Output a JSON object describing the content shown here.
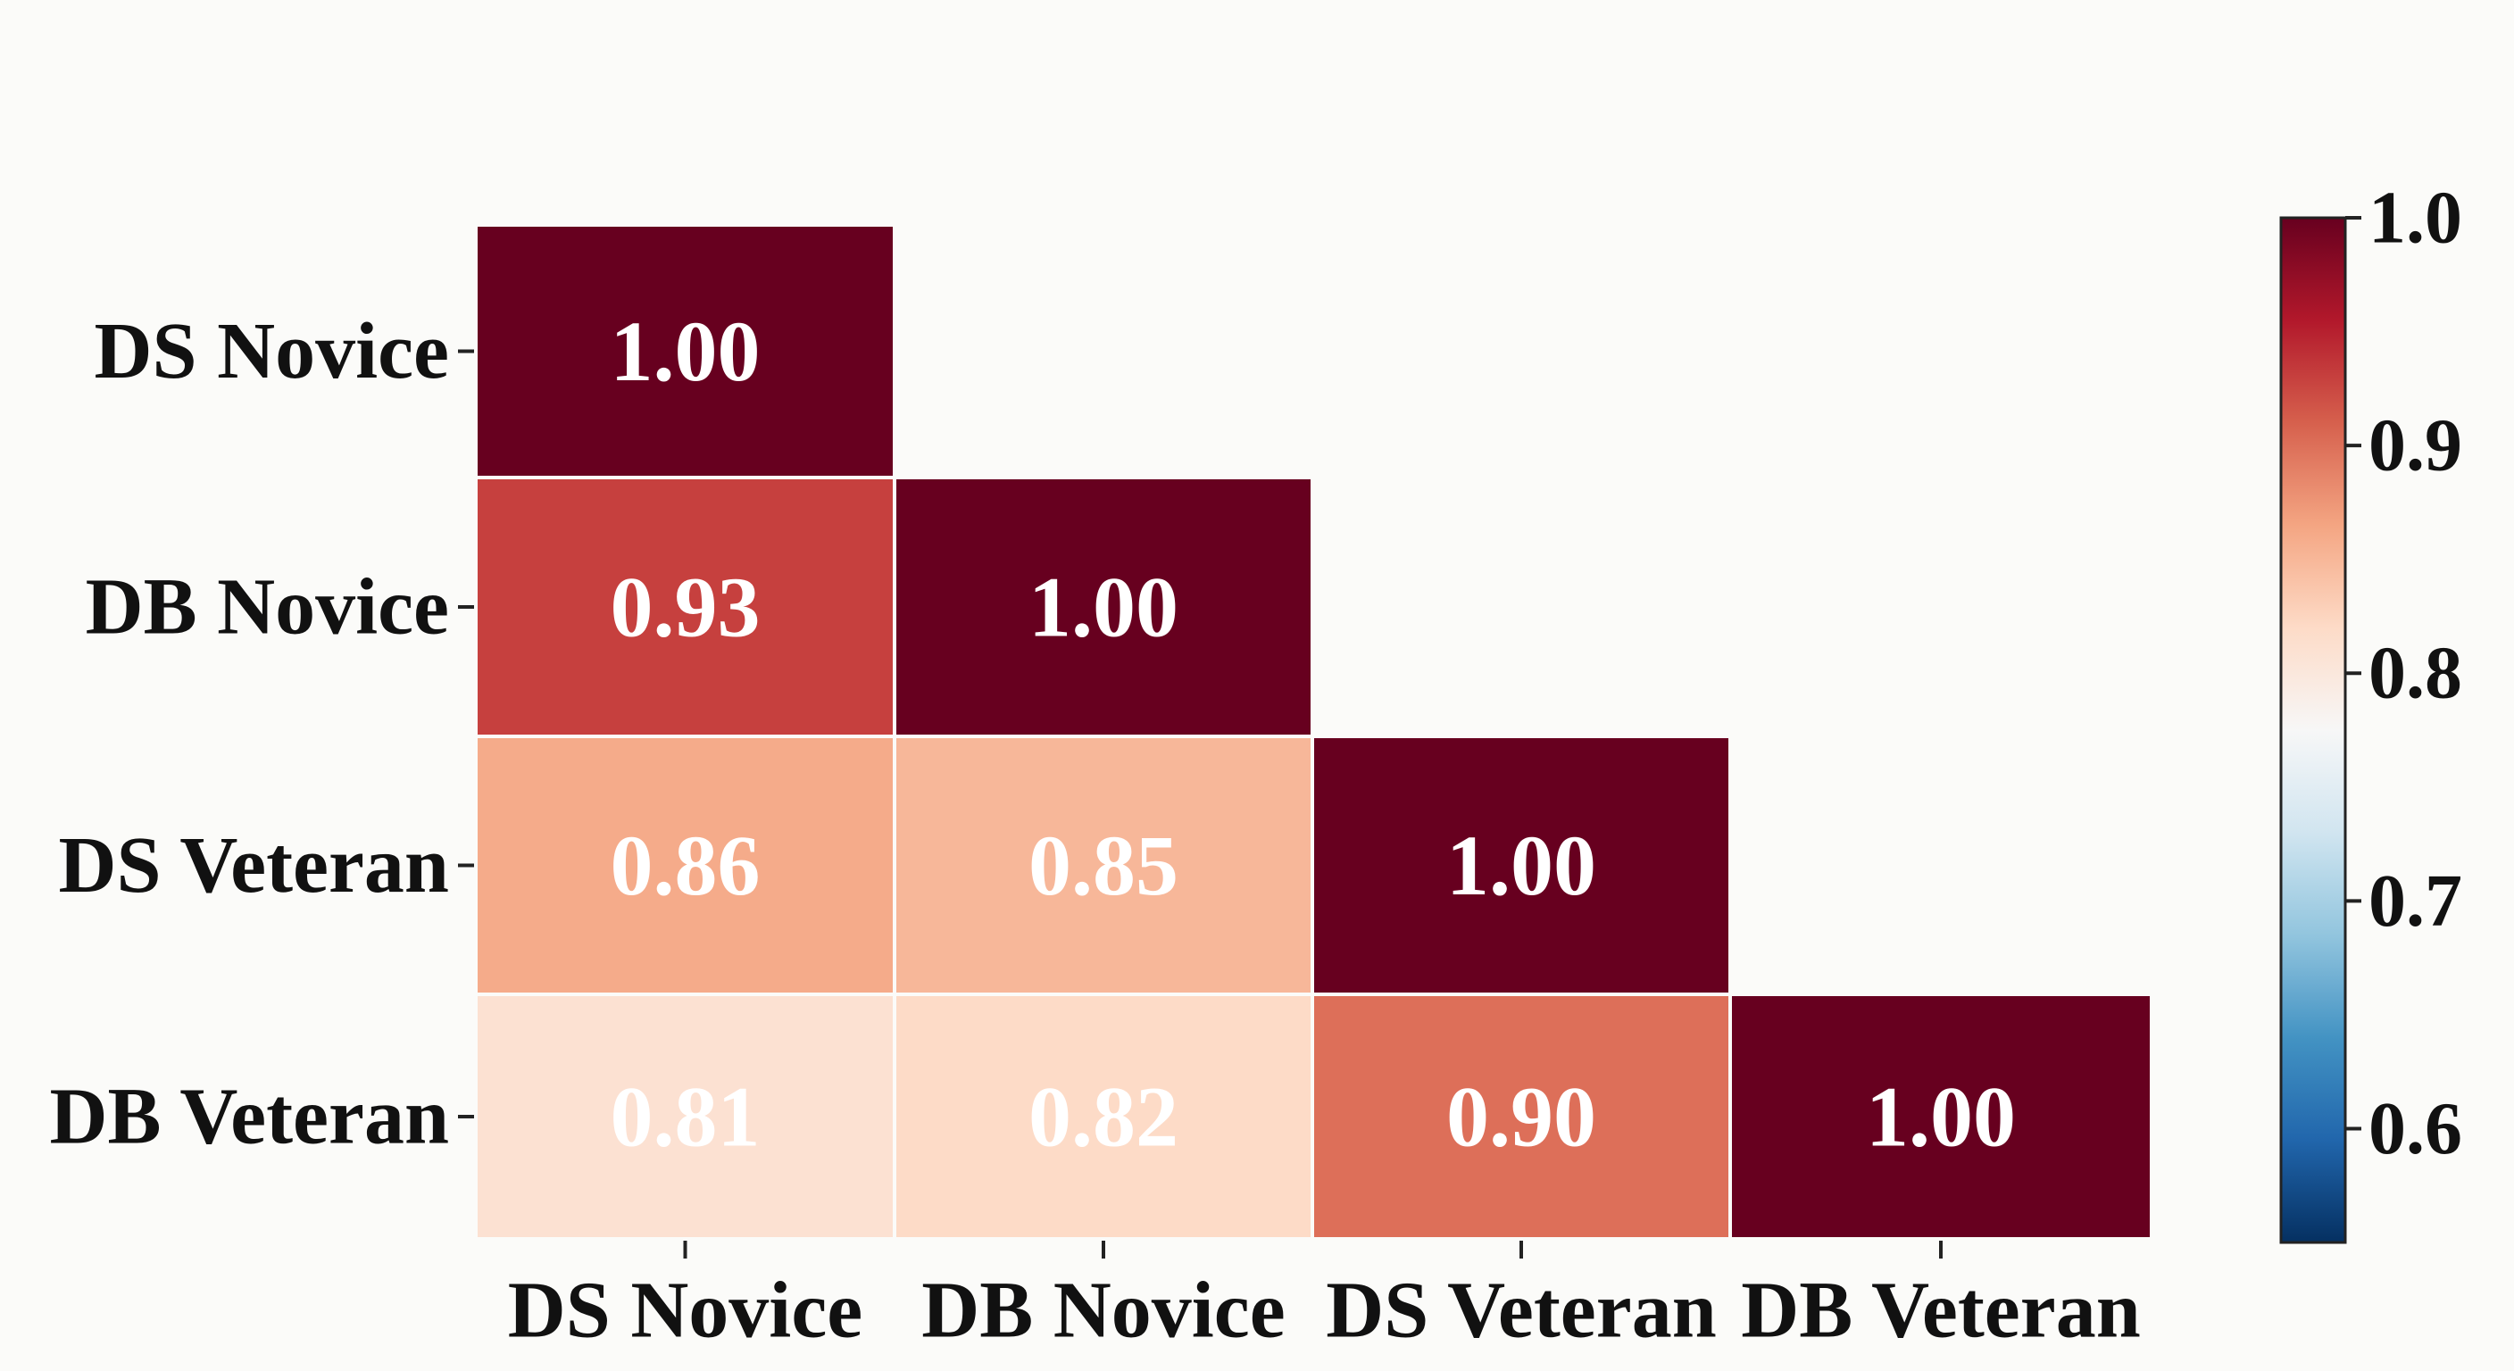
{
  "chart_data": {
    "type": "heatmap",
    "title": "",
    "variant": "lower-triangle correlation matrix",
    "row_labels": [
      "DS Novice",
      "DB Novice",
      "DS Veteran",
      "DB Veteran"
    ],
    "col_labels": [
      "DS Novice",
      "DB Novice",
      "DS Veteran",
      "DB Veteran"
    ],
    "values": [
      [
        1.0,
        null,
        null,
        null
      ],
      [
        0.93,
        1.0,
        null,
        null
      ],
      [
        0.86,
        0.85,
        1.0,
        null
      ],
      [
        0.81,
        0.82,
        0.9,
        1.0
      ]
    ],
    "value_format": "2-decimal",
    "colormap": "RdBu_r",
    "colorbar": {
      "min": 0.55,
      "max": 1.0,
      "ticks": [
        1.0,
        0.9,
        0.8,
        0.7,
        0.6
      ],
      "tick_labels": [
        "1.0",
        "0.9",
        "0.8",
        "0.7",
        "0.6"
      ],
      "placement": "right"
    }
  }
}
